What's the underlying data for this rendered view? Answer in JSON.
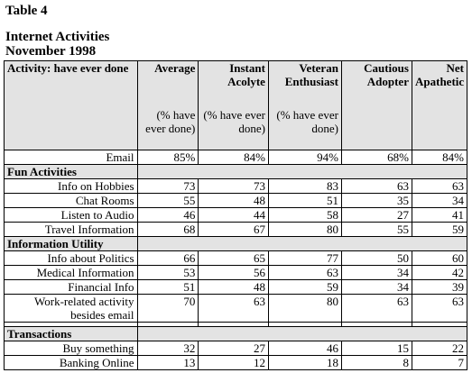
{
  "titles": {
    "table_number": "Table 4",
    "title_line1": "Internet Activities",
    "title_line2": "November 1998"
  },
  "header": {
    "first": "Activity: have ever done",
    "columns": [
      {
        "name": "Average",
        "sub": "(% have ever done)"
      },
      {
        "name": "Instant Acolyte",
        "sub": "(% have ever done)"
      },
      {
        "name": "Veteran Enthusiast",
        "sub": "(% have ever done)"
      },
      {
        "name": "Cautious Adopter",
        "sub": ""
      },
      {
        "name": "Net Apathetic",
        "sub": ""
      }
    ]
  },
  "email_row": {
    "label": "Email",
    "values": [
      "85%",
      "84%",
      "94%",
      "68%",
      "84%"
    ]
  },
  "sections": [
    {
      "title": "Fun Activities",
      "rows": [
        {
          "label": "Info on Hobbies",
          "values": [
            "73",
            "73",
            "83",
            "63",
            "63"
          ]
        },
        {
          "label": "Chat Rooms",
          "values": [
            "55",
            "48",
            "51",
            "35",
            "34"
          ]
        },
        {
          "label": "Listen to Audio",
          "values": [
            "46",
            "44",
            "58",
            "27",
            "41"
          ]
        },
        {
          "label": "Travel Information",
          "values": [
            "68",
            "67",
            "80",
            "55",
            "59"
          ]
        }
      ]
    },
    {
      "title": "Information Utility",
      "rows": [
        {
          "label": "Info about Politics",
          "values": [
            "66",
            "65",
            "77",
            "50",
            "60"
          ]
        },
        {
          "label": "Medical Information",
          "values": [
            "53",
            "56",
            "63",
            "34",
            "42"
          ]
        },
        {
          "label": "Financial Info",
          "values": [
            "51",
            "48",
            "59",
            "34",
            "39"
          ]
        },
        {
          "label": "Work-related activity besides email",
          "values": [
            "70",
            "63",
            "80",
            "63",
            "63"
          ]
        }
      ]
    },
    {
      "title": "Transactions",
      "rows": [
        {
          "label": "Buy something",
          "values": [
            "32",
            "27",
            "46",
            "15",
            "22"
          ]
        },
        {
          "label": "Banking Online",
          "values": [
            "13",
            "12",
            "18",
            "8",
            "7"
          ]
        }
      ]
    }
  ]
}
